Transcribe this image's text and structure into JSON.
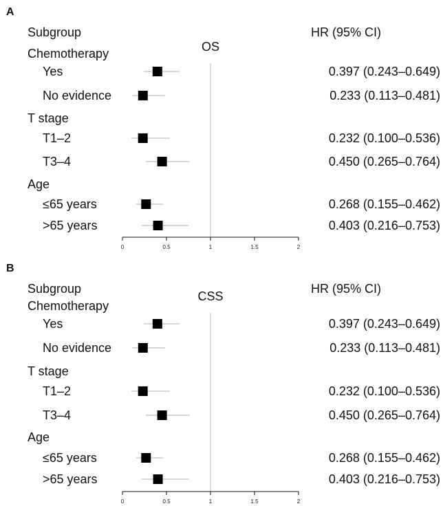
{
  "chart_data": [
    {
      "type": "forest",
      "panel_label": "A",
      "title": "OS",
      "subgroup_header": "Subgroup",
      "hr_header": "HR (95% CI)",
      "xlim": [
        0,
        2
      ],
      "xticks": [
        "0",
        "0.5",
        "1",
        "1.5",
        "2"
      ],
      "reference_line": 1,
      "groups": [
        {
          "label": "Chemotherapy",
          "rows": [
            {
              "label": "Yes",
              "hr": 0.397,
              "lo": 0.243,
              "hi": 0.649,
              "text": "0.397 (0.243–0.649)"
            },
            {
              "label": "No evidence",
              "hr": 0.233,
              "lo": 0.113,
              "hi": 0.481,
              "text": "0.233 (0.113–0.481)"
            }
          ]
        },
        {
          "label": "T stage",
          "rows": [
            {
              "label": "T1–2",
              "hr": 0.232,
              "lo": 0.1,
              "hi": 0.536,
              "text": "0.232 (0.100–0.536)"
            },
            {
              "label": "T3–4",
              "hr": 0.45,
              "lo": 0.265,
              "hi": 0.764,
              "text": "0.450 (0.265–0.764)"
            }
          ]
        },
        {
          "label": "Age",
          "rows": [
            {
              "label": "≤65 years",
              "hr": 0.268,
              "lo": 0.155,
              "hi": 0.462,
              "text": "0.268 (0.155–0.462)"
            },
            {
              "label": ">65 years",
              "hr": 0.403,
              "lo": 0.216,
              "hi": 0.753,
              "text": "0.403 (0.216–0.753)"
            }
          ]
        }
      ]
    },
    {
      "type": "forest",
      "panel_label": "B",
      "title": "CSS",
      "subgroup_header": "Subgroup",
      "hr_header": "HR (95% CI)",
      "xlim": [
        0,
        2
      ],
      "xticks": [
        "0",
        "0.5",
        "1",
        "1.5",
        "2"
      ],
      "reference_line": 1,
      "groups": [
        {
          "label": "Chemotherapy",
          "rows": [
            {
              "label": "Yes",
              "hr": 0.397,
              "lo": 0.243,
              "hi": 0.649,
              "text": "0.397 (0.243–0.649)"
            },
            {
              "label": "No evidence",
              "hr": 0.233,
              "lo": 0.113,
              "hi": 0.481,
              "text": "0.233 (0.113–0.481)"
            }
          ]
        },
        {
          "label": "T stage",
          "rows": [
            {
              "label": "T1–2",
              "hr": 0.232,
              "lo": 0.1,
              "hi": 0.536,
              "text": "0.232 (0.100–0.536)"
            },
            {
              "label": "T3–4",
              "hr": 0.45,
              "lo": 0.265,
              "hi": 0.764,
              "text": "0.450 (0.265–0.764)"
            }
          ]
        },
        {
          "label": "Age",
          "rows": [
            {
              "label": "≤65 years",
              "hr": 0.268,
              "lo": 0.155,
              "hi": 0.462,
              "text": "0.268 (0.155–0.462)"
            },
            {
              "label": ">65 years",
              "hr": 0.403,
              "lo": 0.216,
              "hi": 0.753,
              "text": "0.403 (0.216–0.753)"
            }
          ]
        }
      ]
    }
  ]
}
